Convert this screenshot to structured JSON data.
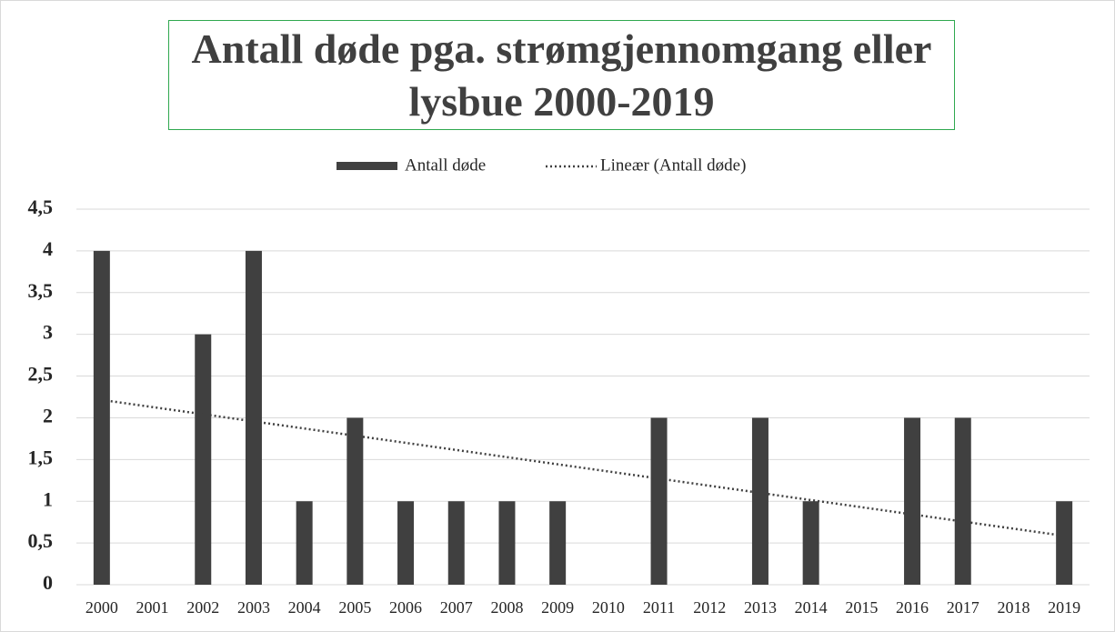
{
  "chart_data": {
    "type": "bar",
    "title": "Antall døde pga. strømgjennomgang eller lysbue 2000-2019",
    "categories": [
      "2000",
      "2001",
      "2002",
      "2003",
      "2004",
      "2005",
      "2006",
      "2007",
      "2008",
      "2009",
      "2010",
      "2011",
      "2012",
      "2013",
      "2014",
      "2015",
      "2016",
      "2017",
      "2018",
      "2019"
    ],
    "series": [
      {
        "name": "Antall døde",
        "color": "#404040",
        "values": [
          4,
          0,
          3,
          4,
          1,
          2,
          1,
          1,
          1,
          1,
          0,
          2,
          0,
          2,
          1,
          0,
          2,
          2,
          0,
          1
        ]
      }
    ],
    "trendline": {
      "name": "Lineær (Antall døde)",
      "type": "linear",
      "color": "#404040"
    },
    "ylim": [
      0,
      4.5
    ],
    "yticks": [
      0,
      {
        "value": 0.5,
        "label": "0,5"
      },
      1,
      {
        "value": 1.5,
        "label": "1,5"
      },
      2,
      {
        "value": 2.5,
        "label": "2,5"
      },
      3,
      {
        "value": 3.5,
        "label": "3,5"
      },
      4,
      {
        "value": 4.5,
        "label": "4,5"
      }
    ],
    "grid": true,
    "legend": "top"
  }
}
